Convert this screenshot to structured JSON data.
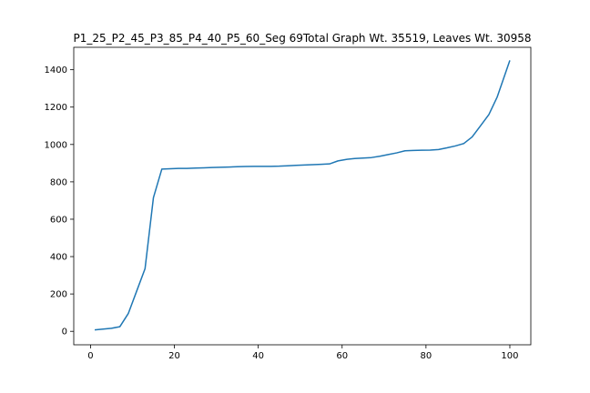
{
  "chart_data": {
    "type": "line",
    "title": "P1_25_P2_45_P3_85_P4_40_P5_60_Seg 69Total Graph Wt. 35519, Leaves Wt. 30958",
    "xlabel": "",
    "ylabel": "",
    "xlim": [
      -4,
      105
    ],
    "ylim": [
      -72,
      1520
    ],
    "xticks": [
      0,
      20,
      40,
      60,
      80,
      100
    ],
    "yticks": [
      0,
      200,
      400,
      600,
      800,
      1000,
      1200,
      1400
    ],
    "grid": false,
    "line_color": "#1f77b4",
    "series": [
      {
        "x": [
          1,
          3,
          5,
          7,
          9,
          11,
          13,
          15,
          17,
          19,
          21,
          23,
          25,
          27,
          29,
          31,
          33,
          35,
          37,
          39,
          41,
          43,
          45,
          47,
          49,
          51,
          53,
          55,
          57,
          59,
          61,
          63,
          65,
          67,
          69,
          71,
          73,
          75,
          77,
          79,
          81,
          83,
          85,
          87,
          89,
          91,
          93,
          95,
          97,
          100
        ],
        "y": [
          8,
          12,
          16,
          25,
          95,
          215,
          335,
          715,
          868,
          870,
          872,
          872,
          874,
          875,
          877,
          878,
          879,
          881,
          882,
          883,
          883,
          883,
          884,
          886,
          888,
          890,
          892,
          894,
          896,
          912,
          920,
          925,
          927,
          930,
          937,
          946,
          955,
          966,
          968,
          969,
          970,
          973,
          982,
          992,
          1005,
          1040,
          1100,
          1160,
          1255,
          1450
        ]
      }
    ]
  }
}
